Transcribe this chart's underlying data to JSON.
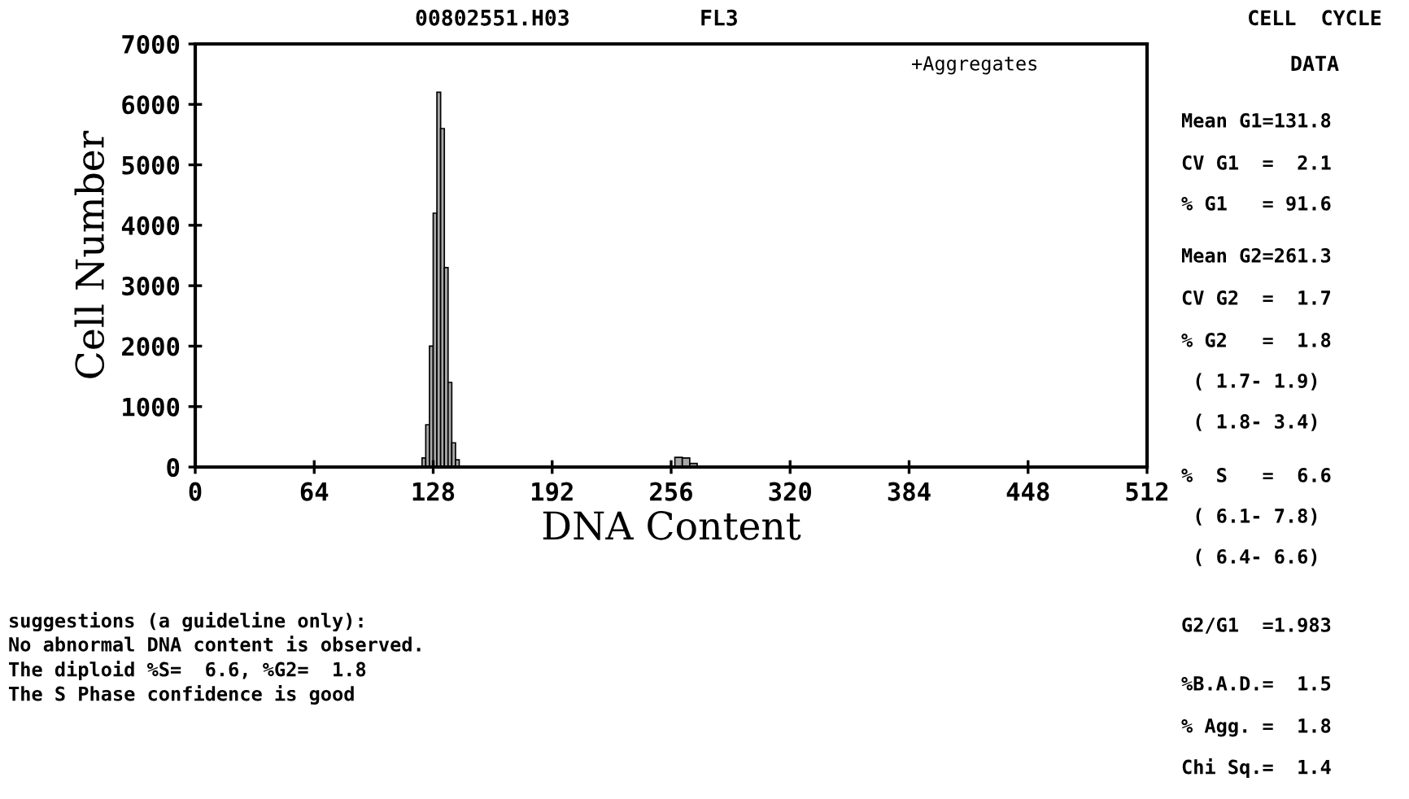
{
  "chart_data": {
    "type": "histogram",
    "title": "00802551.H03",
    "subtitle": "FL3",
    "xlabel": "DNA Content",
    "ylabel": "Cell Number",
    "bins": [
      122,
      124,
      126,
      128,
      130,
      132,
      134,
      136,
      138,
      140,
      142,
      258,
      262,
      266,
      270
    ],
    "values": [
      150,
      700,
      2000,
      4200,
      6200,
      5600,
      3300,
      1400,
      400,
      120,
      null,
      160,
      150,
      60
    ],
    "color": "#a8a8a8",
    "xlim": [
      0,
      512
    ],
    "xticks": [
      0,
      64,
      128,
      192,
      256,
      320,
      384,
      448,
      512
    ],
    "ylim": [
      0,
      7000
    ],
    "yticks": [
      0,
      1000,
      2000,
      3000,
      4000,
      5000,
      6000,
      7000
    ],
    "grid": false,
    "legend": false,
    "annotations": [
      "+Aggregates",
      "CELL  CYCLE",
      "DATA",
      "Mean G1=131.8",
      "CV G1  =  2.1",
      "% G1   = 91.6",
      "Mean G2=261.3",
      "CV G2  =  1.7",
      "% G2   =  1.8",
      " ( 1.7- 1.9)",
      " ( 1.8- 3.4)",
      "%  S   =  6.6",
      " ( 6.1- 7.8)",
      " ( 6.4- 6.6)",
      "G2/G1  =1.983",
      "%B.A.D.=  1.5",
      "% Agg. =  1.8",
      "Chi Sq.=  1.4",
      "suggestions (a guideline only):",
      "No abnormal DNA content is observed.",
      "The diploid %S=  6.6, %G2=  1.8",
      "The S Phase confidence is good"
    ]
  }
}
